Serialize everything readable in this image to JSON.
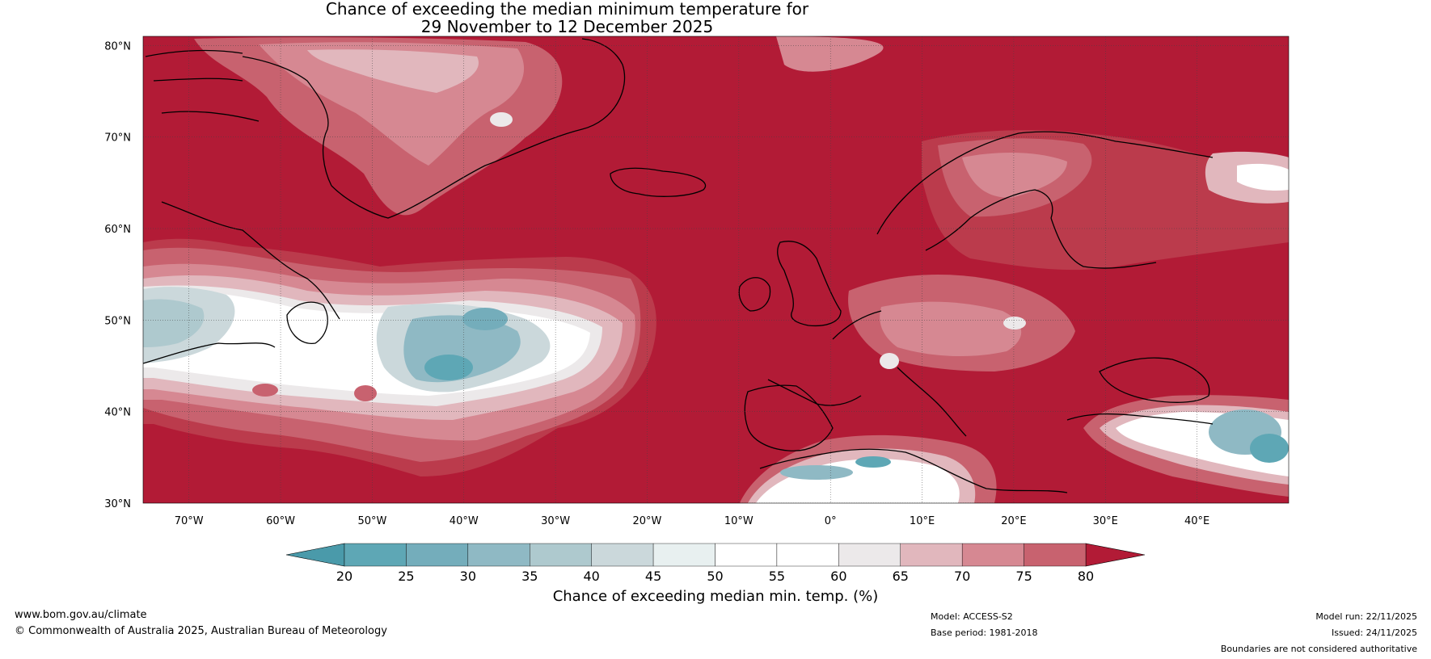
{
  "title": {
    "line1": "Chance of exceeding the median minimum temperature for",
    "line2": "29 November to 12 December 2025"
  },
  "map": {
    "lat_labels": [
      "80°N",
      "70°N",
      "60°N",
      "50°N",
      "40°N",
      "30°N"
    ],
    "lat_values": [
      80,
      70,
      60,
      50,
      40,
      30
    ],
    "lon_labels": [
      "70°W",
      "60°W",
      "50°W",
      "40°W",
      "30°W",
      "20°W",
      "10°W",
      "0°",
      "10°E",
      "20°E",
      "30°E",
      "40°E"
    ],
    "lon_values": [
      -70,
      -60,
      -50,
      -40,
      -30,
      -20,
      -10,
      0,
      10,
      20,
      30,
      40
    ],
    "extent": {
      "lon_min": -75,
      "lon_max": 50,
      "lat_min": 30,
      "lat_max": 81
    }
  },
  "colorbar": {
    "ticks": [
      "20",
      "25",
      "30",
      "35",
      "40",
      "45",
      "50",
      "55",
      "60",
      "65",
      "70",
      "75",
      "80"
    ],
    "colors": [
      "#5ea7b5",
      "#74adbb",
      "#8fb9c4",
      "#aec9ce",
      "#cbd8db",
      "#e8f0f0",
      "#ffffff",
      "#ffffff",
      "#ece9ea",
      "#e1b7bd",
      "#d68892",
      "#c8626f",
      "#bb3b4c"
    ],
    "low_color": "#4a9aaa",
    "high_color": "#b21b36",
    "label": "Chance of exceeding median min. temp. (%)"
  },
  "colors": {
    "base_red": "#b21b36",
    "c75": "#bb3b4c",
    "c70": "#c8626f",
    "c65": "#d68892",
    "c60": "#e1b7bd",
    "c55": "#ece9ea",
    "c50": "#ffffff",
    "c40": "#cbd8db",
    "c30": "#8fb9c4",
    "c20": "#5ea7b5"
  },
  "footer": {
    "website": "www.bom.gov.au/climate",
    "copyright": "© Commonwealth of Australia 2025, Australian Bureau of Meteorology",
    "model": "Model: ACCESS-S2",
    "base_period": "Base period: 1981-2018",
    "model_run": "Model run: 22/11/2025",
    "issued": "Issued: 24/11/2025",
    "disclaimer": "Boundaries are not considered authoritative"
  }
}
